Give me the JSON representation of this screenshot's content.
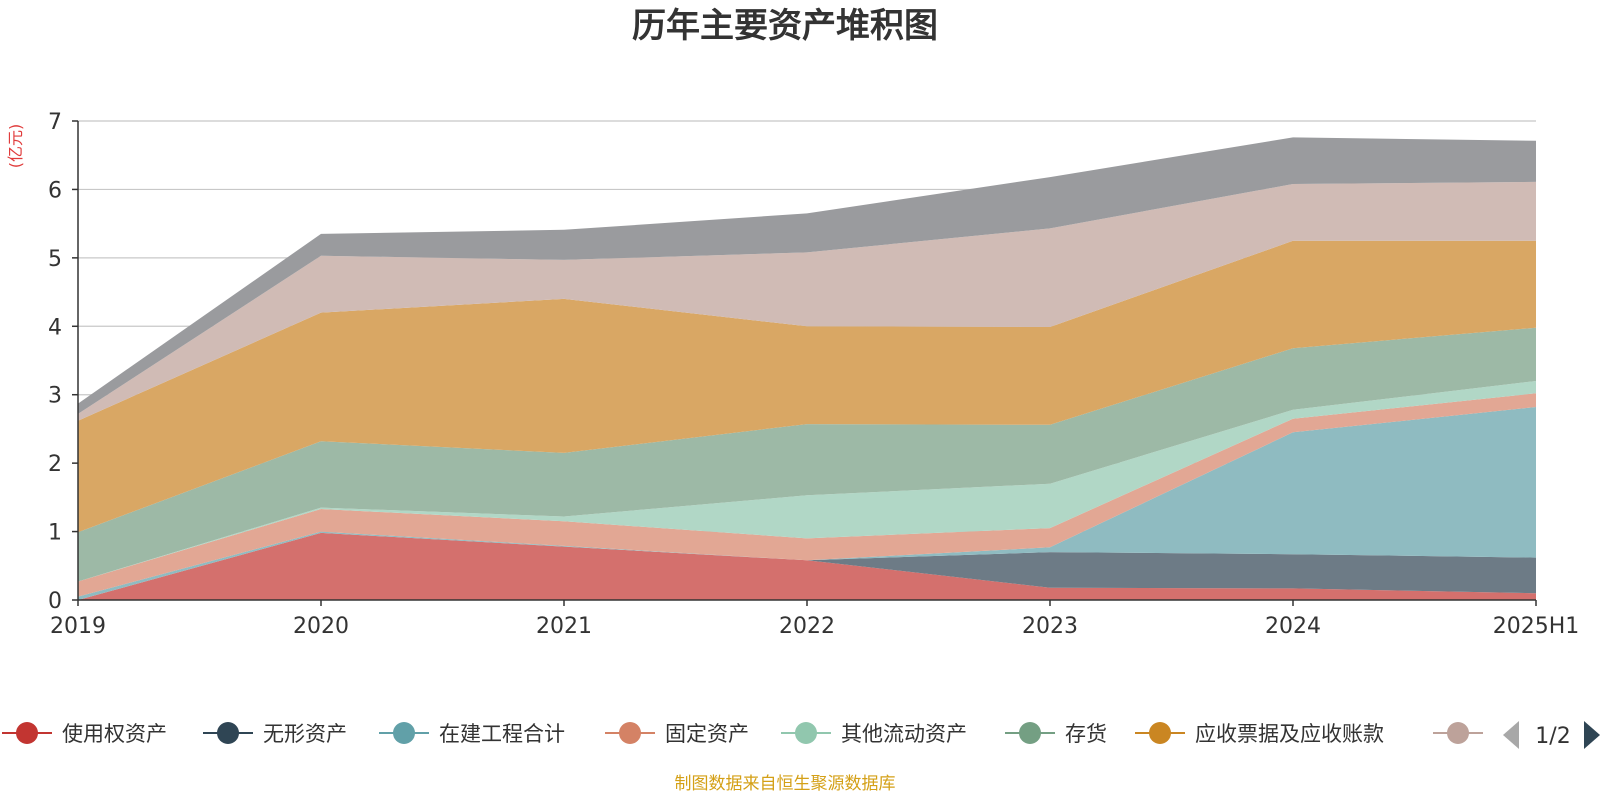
{
  "chart_data": {
    "type": "area",
    "stacked": true,
    "title": "历年主要资产堆积图",
    "unit_label": "(亿元)",
    "source_note": "制图数据来自恒生聚源数据库",
    "x": [
      "2019",
      "2020",
      "2021",
      "2022",
      "2023",
      "2024",
      "2025H1"
    ],
    "ylim": [
      0,
      7
    ],
    "yticks": [
      0,
      1,
      2,
      3,
      4,
      5,
      6,
      7
    ],
    "grid": true,
    "legend_position": "bottom",
    "legend_page": "1/2",
    "series": [
      {
        "name": "使用权资产",
        "color": "#c23531",
        "fill": "#d4706d",
        "values": [
          0.0,
          0.98,
          0.78,
          0.58,
          0.18,
          0.17,
          0.1
        ]
      },
      {
        "name": "无形资产",
        "color": "#2f4554",
        "fill": "#6d7b86",
        "values": [
          0.0,
          0.0,
          0.0,
          0.0,
          0.52,
          0.5,
          0.52
        ]
      },
      {
        "name": "在建工程合计",
        "color": "#61a0a8",
        "fill": "#8fbbc1",
        "values": [
          0.05,
          0.02,
          0.01,
          0.0,
          0.07,
          1.78,
          2.2
        ]
      },
      {
        "name": "固定资产",
        "color": "#d48265",
        "fill": "#e2a794",
        "values": [
          0.22,
          0.33,
          0.36,
          0.32,
          0.28,
          0.2,
          0.2
        ]
      },
      {
        "name": "其他流动资产",
        "color": "#91c7ae",
        "fill": "#b1d7c6",
        "values": [
          0.0,
          0.02,
          0.07,
          0.63,
          0.65,
          0.13,
          0.18
        ]
      },
      {
        "name": "存货",
        "color": "#749f83",
        "fill": "#9db9a6",
        "values": [
          0.72,
          0.97,
          0.93,
          1.04,
          0.86,
          0.9,
          0.78
        ]
      },
      {
        "name": "应收票据及应收账款",
        "color": "#ca8622",
        "fill": "#d9a764",
        "values": [
          1.63,
          1.88,
          2.25,
          1.43,
          1.43,
          1.57,
          1.27
        ]
      },
      {
        "name": "",
        "color": "#bda29a",
        "fill": "#d0bbb5",
        "values": [
          0.1,
          0.83,
          0.57,
          1.08,
          1.44,
          0.83,
          0.86
        ]
      },
      {
        "name": "",
        "color": "#6e7074",
        "fill": "#9a9b9e",
        "values": [
          0.15,
          0.32,
          0.44,
          0.57,
          0.75,
          0.68,
          0.6
        ]
      }
    ]
  }
}
